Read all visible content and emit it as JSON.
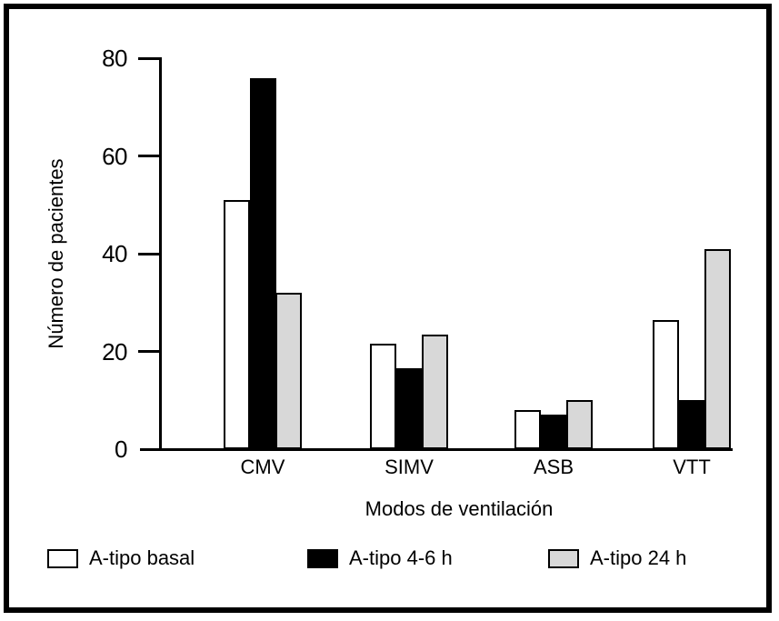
{
  "figure": {
    "background": "#ffffff",
    "frame_color": "#000000"
  },
  "chart_data": {
    "type": "bar",
    "title": "",
    "categories": [
      "CMV",
      "SIMV",
      "ASB",
      "VTT"
    ],
    "series": [
      {
        "name": "A-tipo basal",
        "color": "#ffffff",
        "values": [
          51,
          21.5,
          8,
          26.5
        ]
      },
      {
        "name": "A-tipo 4-6 h",
        "color": "#000000",
        "values": [
          76,
          16.5,
          7,
          10
        ]
      },
      {
        "name": "A-tipo 24 h",
        "color": "#d8d8d8",
        "values": [
          32,
          23.5,
          10,
          41
        ]
      }
    ],
    "xlabel": "Modos de ventilación",
    "ylabel": "Número de pacientes",
    "ylim": [
      0,
      80
    ],
    "yticks": [
      0,
      20,
      40,
      60,
      80
    ],
    "grid": false,
    "legend_position": "bottom",
    "bar_outline_color": "#000000"
  }
}
